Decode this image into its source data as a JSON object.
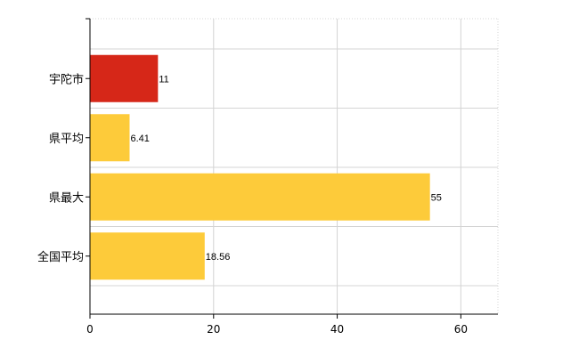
{
  "chart_data": {
    "type": "bar",
    "orientation": "horizontal",
    "categories": [
      "宇陀市",
      "県平均",
      "県最大",
      "全国平均"
    ],
    "values": [
      11,
      6.41,
      55,
      18.56
    ],
    "value_labels": [
      "11",
      "6.41",
      "55",
      "18.56"
    ],
    "title": "",
    "xlabel": "",
    "ylabel": "",
    "xlim": [
      0,
      66
    ],
    "x_ticks": [
      0,
      20,
      40,
      60
    ],
    "x_tick_labels": [
      "0",
      "20",
      "40",
      "60"
    ],
    "grid": true,
    "legend": "none",
    "highlight_index": 0
  },
  "colors": {
    "highlight": "#d62718",
    "bar": "#fdcb3a",
    "grid": "#d4d4d4",
    "axis": "#000000"
  }
}
